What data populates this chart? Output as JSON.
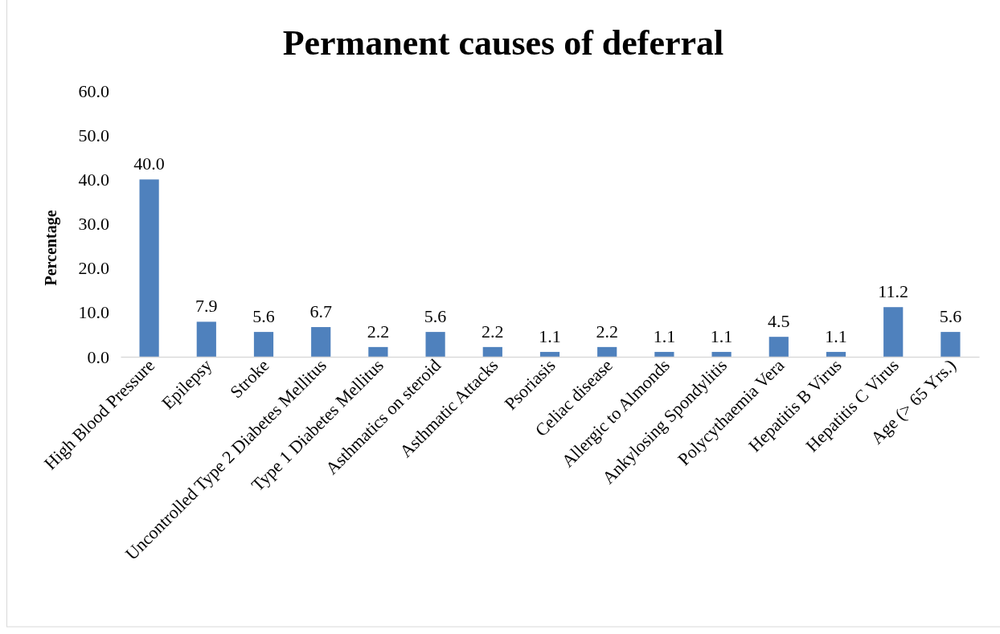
{
  "chart_data": {
    "type": "bar",
    "title": "Permanent causes of deferral",
    "ylabel": "Percentage",
    "categories": [
      "High Blood Pressure",
      "Epilepsy",
      "Stroke",
      "Uncontrolled Type 2 Diabetes Mellitus",
      "Type 1 Diabetes Mellitus",
      "Asthmatics on steroid",
      "Asthmatic Attacks",
      "Psoriasis",
      "Celiac disease",
      "Allergic to Almonds",
      "Ankylosing Spondylitis",
      "Polycythaemia Vera",
      "Hepatitis B Virus",
      "Hepatitis C Virus",
      "Age (> 65 Yrs.)"
    ],
    "values": [
      40.0,
      7.9,
      5.6,
      6.7,
      2.2,
      5.6,
      2.2,
      1.1,
      2.2,
      1.1,
      1.1,
      4.5,
      1.1,
      11.2,
      5.6
    ],
    "value_labels": [
      "40.0",
      "7.9",
      "5.6",
      "6.7",
      "2.2",
      "5.6",
      "2.2",
      "1.1",
      "2.2",
      "1.1",
      "1.1",
      "4.5",
      "1.1",
      "11.2",
      "5.6"
    ],
    "color": "#4f81bd",
    "ylim": [
      0,
      60
    ],
    "yticks": [
      {
        "value": 0,
        "label": "0.0"
      },
      {
        "value": 10,
        "label": "10.0"
      },
      {
        "value": 20,
        "label": "20.0"
      },
      {
        "value": 30,
        "label": "30.0"
      },
      {
        "value": 40,
        "label": "40.0"
      },
      {
        "value": 50,
        "label": "50.0"
      },
      {
        "value": 60,
        "label": "60.0"
      }
    ],
    "grid": false
  }
}
